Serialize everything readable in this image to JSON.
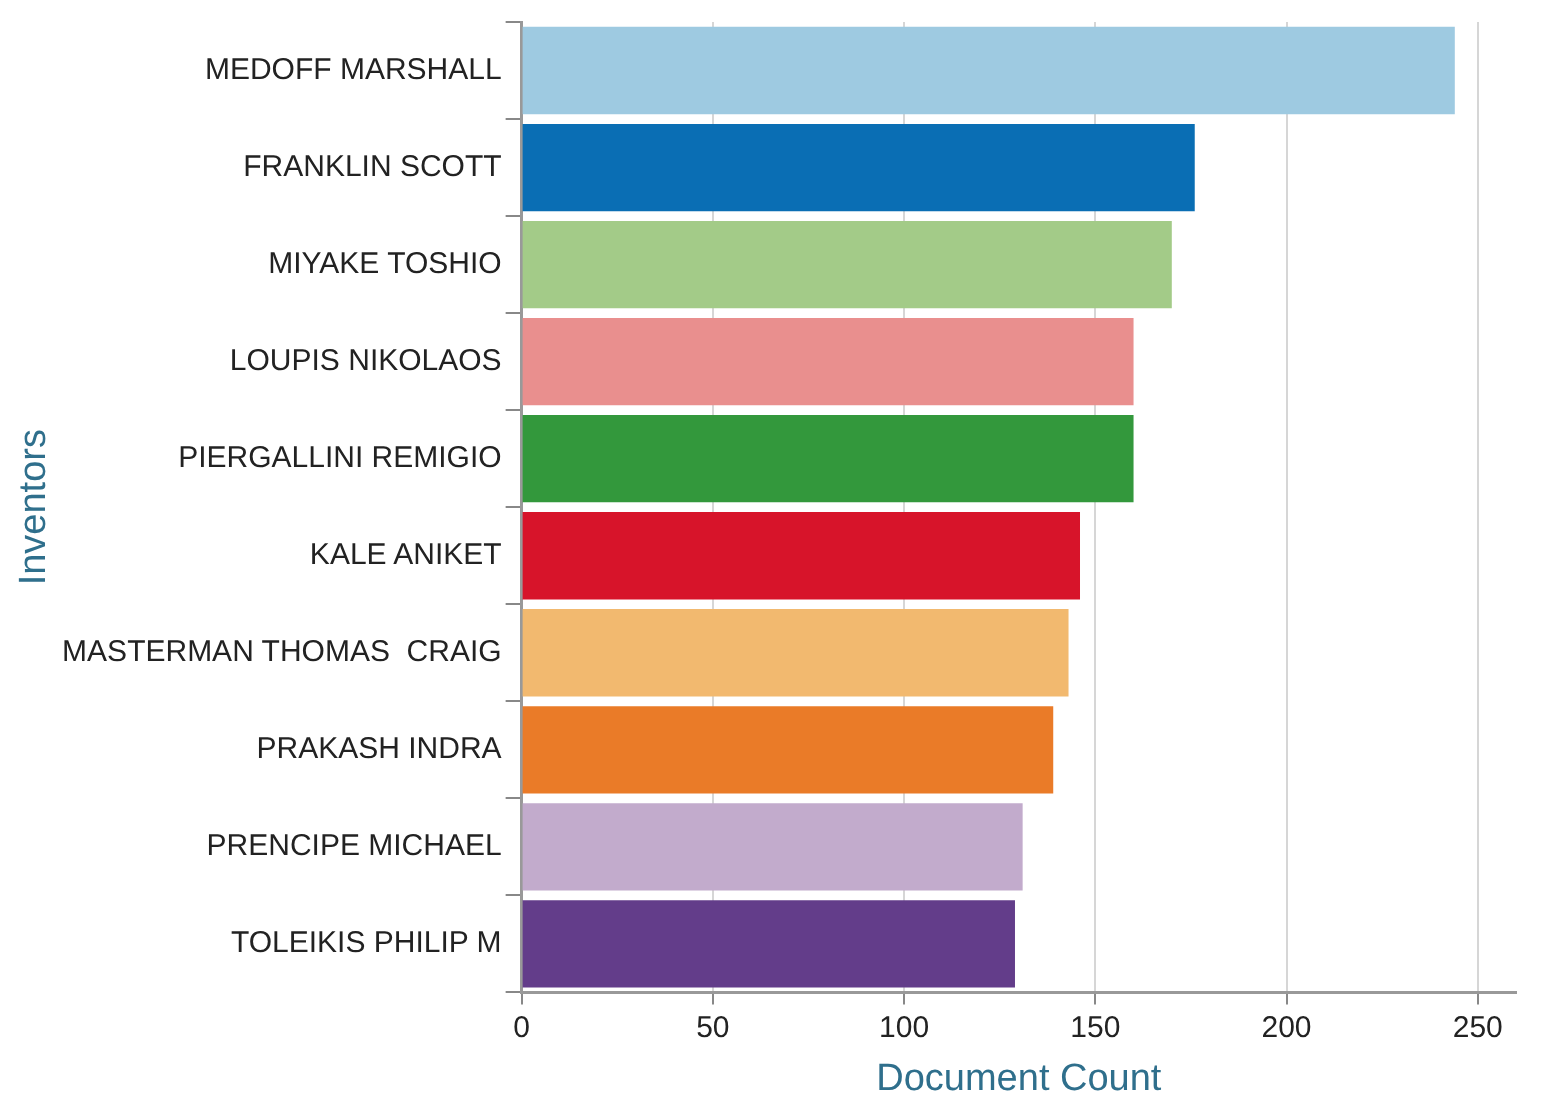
{
  "chart_data": {
    "type": "bar",
    "orientation": "horizontal",
    "xlabel": "Document Count",
    "ylabel": "Inventors",
    "categories": [
      "MEDOFF MARSHALL",
      "FRANKLIN SCOTT",
      "MIYAKE TOSHIO",
      "LOUPIS NIKOLAOS",
      "PIERGALLINI REMIGIO",
      "KALE ANIKET",
      "MASTERMAN THOMAS  CRAIG",
      "PRAKASH INDRA",
      "PRENCIPE MICHAEL",
      "TOLEIKIS PHILIP M"
    ],
    "values": [
      244,
      176,
      170,
      160,
      160,
      146,
      143,
      139,
      131,
      129
    ],
    "colors": [
      "#9ecae1",
      "#0a6eb4",
      "#a3cb88",
      "#e98f8e",
      "#33983c",
      "#d7142a",
      "#f2b96f",
      "#ea7b28",
      "#c2abcc",
      "#633d8a"
    ],
    "xlim": [
      0,
      260
    ],
    "xticks": [
      0,
      50,
      100,
      150,
      200,
      250
    ],
    "grid": "x",
    "legend": false
  }
}
